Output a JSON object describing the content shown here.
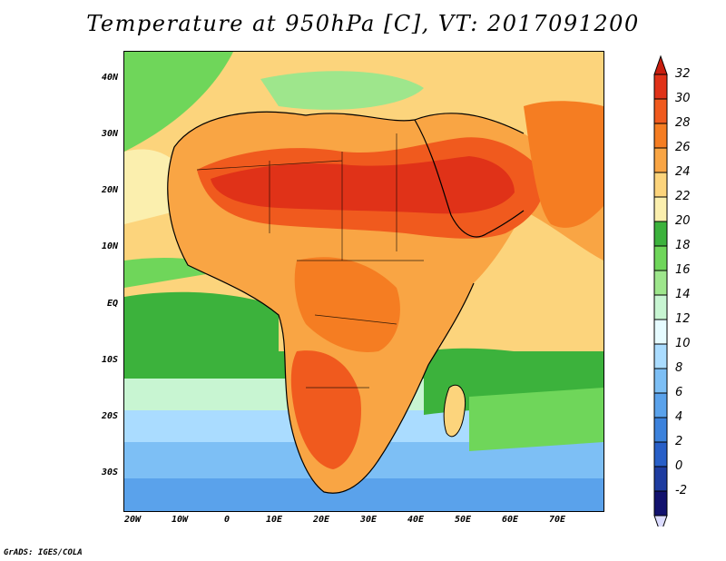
{
  "title": "Temperature at 950hPa [C], VT: 2017091200",
  "credit": "GrADS: IGES/COLA",
  "map": {
    "lat_labels": [
      "40N",
      "30N",
      "20N",
      "10N",
      "EQ",
      "10S",
      "20S",
      "30S"
    ],
    "lon_labels": [
      "20W",
      "10W",
      "0",
      "10E",
      "20E",
      "30E",
      "40E",
      "50E",
      "60E",
      "70E"
    ],
    "variable": "Temperature",
    "level": "950hPa",
    "units": "C",
    "valid_time": "2017091200"
  },
  "colorbar": {
    "labels": [
      "32",
      "30",
      "28",
      "26",
      "24",
      "22",
      "20",
      "18",
      "16",
      "14",
      "12",
      "10",
      "8",
      "6",
      "4",
      "2",
      "0",
      "-2"
    ],
    "colors": [
      "#e03218",
      "#f05a1e",
      "#f57d22",
      "#f9a544",
      "#fcd47c",
      "#fbefae",
      "#3cb23c",
      "#6fd65a",
      "#9ee68c",
      "#c8f5d2",
      "#e6fbff",
      "#aadcff",
      "#7dbff5",
      "#5aa2eb",
      "#3c82dc",
      "#285fc8",
      "#1e3ca0",
      "#12126e"
    ],
    "top_color": "#c81e0f",
    "bottom_color": "#dcdcff"
  }
}
